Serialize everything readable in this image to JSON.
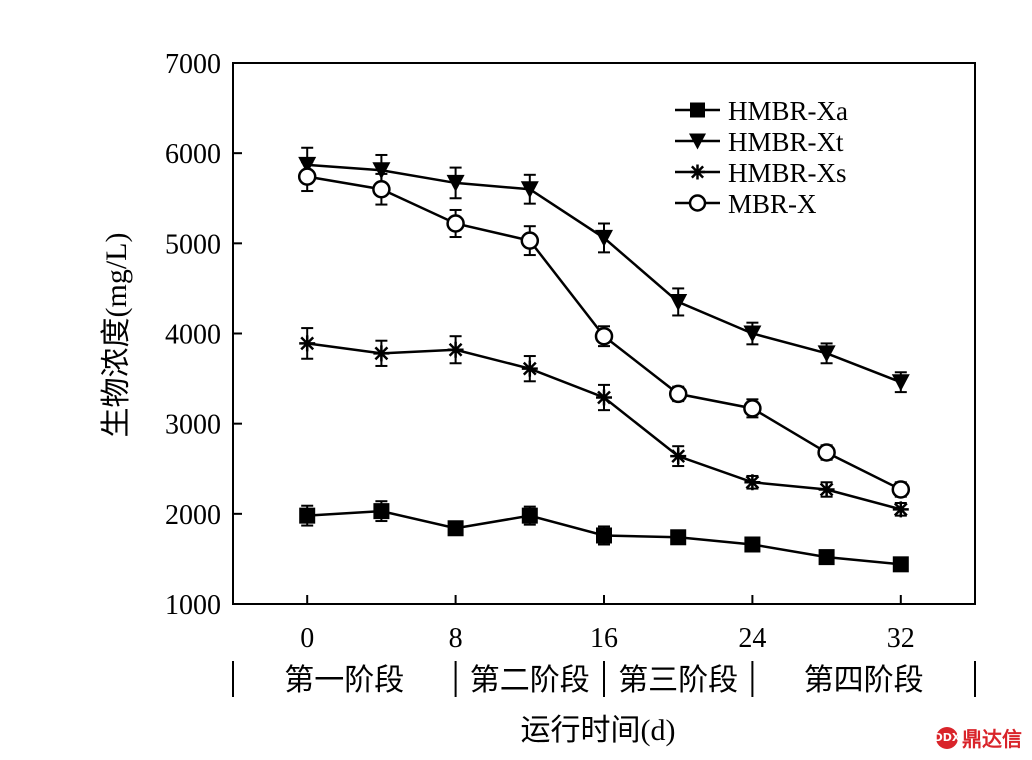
{
  "chart_data": {
    "type": "line",
    "ylabel": "生物浓度(mg/L)",
    "xlabel": "运行时间(d)",
    "xlim": [
      -4,
      36
    ],
    "ylim": [
      1000,
      7000
    ],
    "xticks": [
      0,
      8,
      16,
      24,
      32
    ],
    "yticks": [
      1000,
      2000,
      3000,
      4000,
      5000,
      6000,
      7000
    ],
    "stages": [
      {
        "label": "第一阶段",
        "range": [
          -4,
          8
        ]
      },
      {
        "label": "第二阶段",
        "range": [
          8,
          16
        ]
      },
      {
        "label": "第三阶段",
        "range": [
          16,
          24
        ]
      },
      {
        "label": "第四阶段",
        "range": [
          24,
          36
        ]
      }
    ],
    "x": [
      0,
      4,
      8,
      12,
      16,
      20,
      24,
      28,
      32
    ],
    "legend_position": "top-right",
    "series": [
      {
        "name": "HMBR-Xa",
        "marker": "square-filled",
        "values": [
          1980,
          2030,
          1840,
          1980,
          1760,
          1740,
          1660,
          1520,
          1440
        ],
        "errors": [
          110,
          110,
          70,
          100,
          100,
          70,
          70,
          70,
          70
        ]
      },
      {
        "name": "HMBR-Xt",
        "marker": "triangle-down-filled",
        "values": [
          5870,
          5810,
          5670,
          5600,
          5060,
          4350,
          4000,
          3780,
          3460
        ],
        "errors": [
          190,
          170,
          170,
          160,
          160,
          150,
          120,
          110,
          110
        ]
      },
      {
        "name": "HMBR-Xs",
        "marker": "asterisk",
        "values": [
          3890,
          3780,
          3820,
          3610,
          3290,
          2640,
          2350,
          2270,
          2050
        ],
        "errors": [
          170,
          140,
          150,
          140,
          140,
          110,
          70,
          80,
          70
        ]
      },
      {
        "name": "MBR-X",
        "marker": "circle-open",
        "values": [
          5740,
          5600,
          5220,
          5030,
          3970,
          3330,
          3170,
          2680,
          2270
        ],
        "errors": [
          160,
          170,
          150,
          160,
          110,
          80,
          100,
          80,
          80
        ]
      }
    ]
  },
  "watermark": {
    "text": "鼎达信",
    "badge": "DDX"
  }
}
